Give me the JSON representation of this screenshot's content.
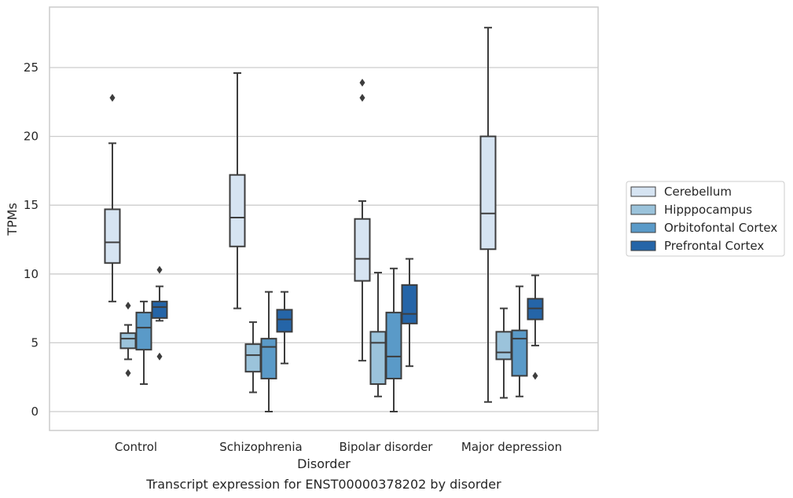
{
  "chart_data": {
    "type": "box",
    "title": "",
    "caption": "Transcript expression for ENST00000378202 by disorder",
    "xlabel": "Disorder",
    "ylabel": "TPMs",
    "ylim": [
      -1.3,
      29
    ],
    "yticks": [
      0,
      5,
      10,
      15,
      20,
      25
    ],
    "grid": "horizontal",
    "legend_placement": "right",
    "categories": [
      "Control",
      "Schizophrenia",
      "Bipolar disorder",
      "Major depression"
    ],
    "series": [
      {
        "name": "Cerebellum",
        "color": "#d6e4f2",
        "boxes": [
          {
            "whisker_low": 8.0,
            "q1": 10.8,
            "median": 12.3,
            "q3": 14.7,
            "whisker_high": 19.5,
            "outliers": [
              22.8
            ]
          },
          {
            "whisker_low": 7.5,
            "q1": 12.0,
            "median": 14.1,
            "q3": 17.2,
            "whisker_high": 24.6,
            "outliers": []
          },
          {
            "whisker_low": 3.7,
            "q1": 9.5,
            "median": 11.1,
            "q3": 14.0,
            "whisker_high": 15.3,
            "outliers": [
              22.8,
              23.9
            ]
          },
          {
            "whisker_low": 0.7,
            "q1": 11.8,
            "median": 14.4,
            "q3": 20.0,
            "whisker_high": 27.9,
            "outliers": []
          }
        ]
      },
      {
        "name": "Hipppocampus",
        "color": "#9bc3db",
        "boxes": [
          {
            "whisker_low": 3.8,
            "q1": 4.6,
            "median": 5.3,
            "q3": 5.7,
            "whisker_high": 6.3,
            "outliers": [
              2.8,
              7.7
            ]
          },
          {
            "whisker_low": 1.4,
            "q1": 2.9,
            "median": 4.1,
            "q3": 4.9,
            "whisker_high": 6.5,
            "outliers": []
          },
          {
            "whisker_low": 1.1,
            "q1": 2.0,
            "median": 5.0,
            "q3": 5.8,
            "whisker_high": 10.1,
            "outliers": []
          },
          {
            "whisker_low": 1.0,
            "q1": 3.8,
            "median": 4.3,
            "q3": 5.8,
            "whisker_high": 7.5,
            "outliers": []
          }
        ]
      },
      {
        "name": "Orbitofontal Cortex",
        "color": "#5a9ac8",
        "boxes": [
          {
            "whisker_low": 2.0,
            "q1": 4.5,
            "median": 6.1,
            "q3": 7.2,
            "whisker_high": 8.0,
            "outliers": []
          },
          {
            "whisker_low": 0.0,
            "q1": 2.4,
            "median": 4.7,
            "q3": 5.3,
            "whisker_high": 8.7,
            "outliers": []
          },
          {
            "whisker_low": 0.0,
            "q1": 2.4,
            "median": 4.0,
            "q3": 7.2,
            "whisker_high": 10.4,
            "outliers": []
          },
          {
            "whisker_low": 1.1,
            "q1": 2.6,
            "median": 5.3,
            "q3": 5.9,
            "whisker_high": 9.1,
            "outliers": []
          }
        ]
      },
      {
        "name": "Prefrontal Cortex",
        "color": "#2565a8",
        "boxes": [
          {
            "whisker_low": 6.6,
            "q1": 6.8,
            "median": 7.6,
            "q3": 8.0,
            "whisker_high": 9.1,
            "outliers": [
              4.0,
              10.3
            ]
          },
          {
            "whisker_low": 3.5,
            "q1": 5.8,
            "median": 6.7,
            "q3": 7.4,
            "whisker_high": 8.7,
            "outliers": []
          },
          {
            "whisker_low": 3.3,
            "q1": 6.4,
            "median": 7.1,
            "q3": 9.2,
            "whisker_high": 11.1,
            "outliers": []
          },
          {
            "whisker_low": 4.8,
            "q1": 6.7,
            "median": 7.5,
            "q3": 8.2,
            "whisker_high": 9.9,
            "outliers": [
              2.6
            ]
          }
        ]
      }
    ]
  }
}
